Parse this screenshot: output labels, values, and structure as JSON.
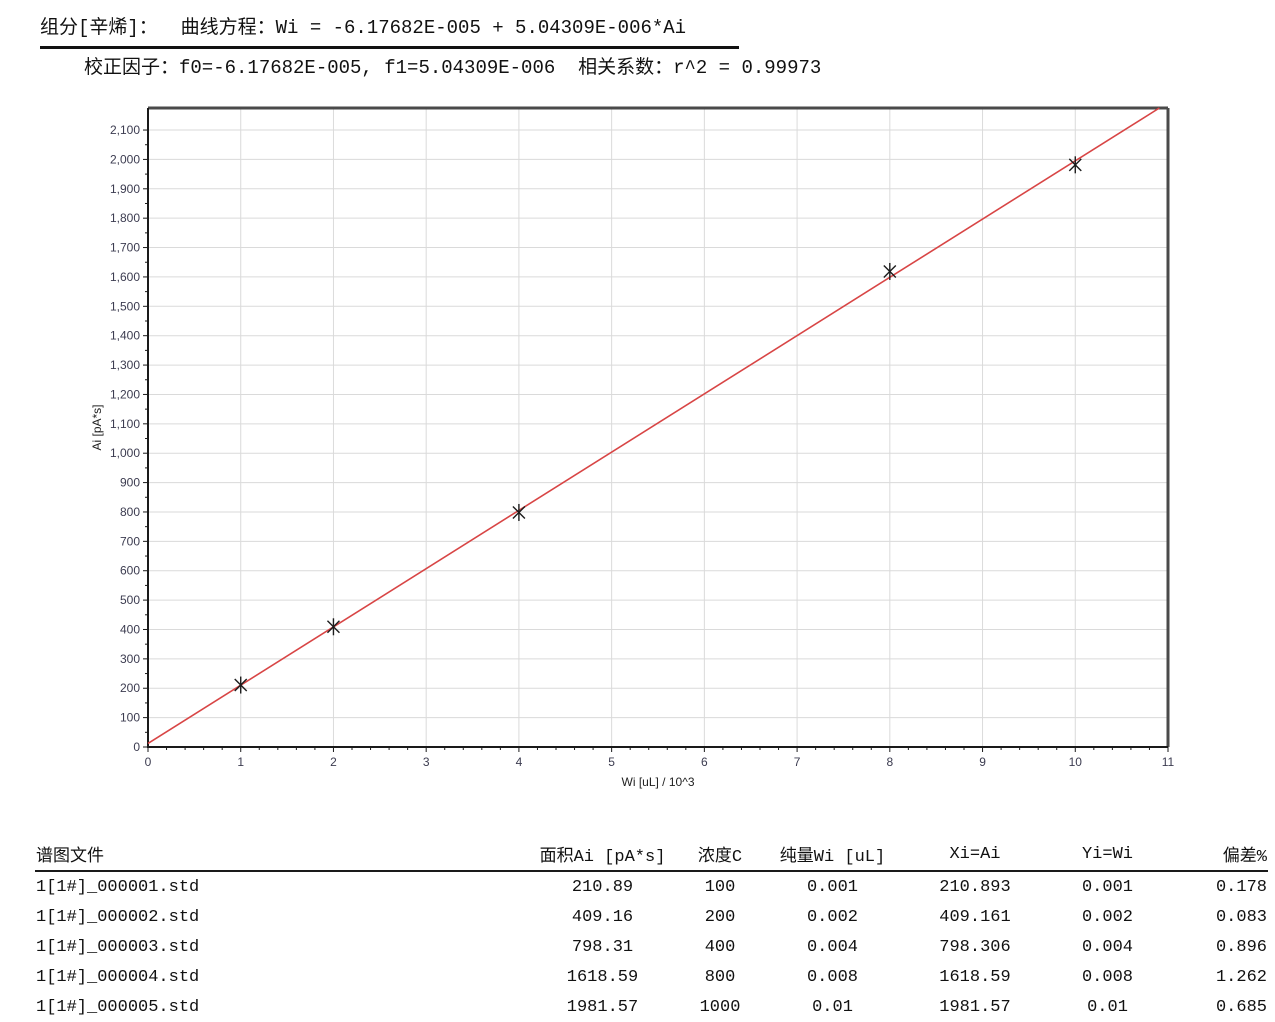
{
  "header": {
    "line1": "组分[辛烯]：  曲线方程：Wi = -6.17682E-005 + 5.04309E-006*Ai",
    "line2": "校正因子：f0=-6.17682E-005, f1=5.04309E-006  相关系数：r^2 = 0.99973"
  },
  "chart_data": {
    "type": "scatter",
    "title": "",
    "xlabel": "Wi [uL] / 10^3",
    "ylabel": "Ai [pA*s]",
    "xlim": [
      0,
      11
    ],
    "ylim": [
      0,
      2175
    ],
    "x_major_step": 1,
    "x_minor_step": 0.2,
    "y_major_step": 100,
    "y_minor_step": 50,
    "y_label_max": 2100,
    "grid": true,
    "legend": "none",
    "points": [
      {
        "x": 1,
        "y": 210.893
      },
      {
        "x": 2,
        "y": 409.161
      },
      {
        "x": 4,
        "y": 798.306
      },
      {
        "x": 8,
        "y": 1618.59
      },
      {
        "x": 10,
        "y": 1981.57
      }
    ],
    "fit_line": {
      "f0": -6.17682e-05,
      "f1": 5.04309e-06,
      "x_axis_scale": 1000
    },
    "colors": {
      "fit_line": "#d84545",
      "marker": "#1c1c1c",
      "grid": "#dadada",
      "border_outer": "#4a4a4a",
      "axis": "#1a1a1a",
      "tick_label": "#3c3c50",
      "axis_title": "#222222"
    }
  },
  "table": {
    "columns": [
      "谱图文件",
      "面积Ai [pA*s]",
      "浓度C",
      "纯量Wi [uL]",
      "Xi=Ai",
      "Yi=Wi",
      "偏差%"
    ],
    "col_aligns": [
      "left",
      "center",
      "center",
      "center",
      "center",
      "center",
      "right"
    ],
    "rows": [
      [
        "1[1#]_000001.std",
        "210.89",
        "100",
        "0.001",
        "210.893",
        "0.001",
        "0.178"
      ],
      [
        "1[1#]_000002.std",
        "409.16",
        "200",
        "0.002",
        "409.161",
        "0.002",
        "0.083"
      ],
      [
        "1[1#]_000003.std",
        "798.31",
        "400",
        "0.004",
        "798.306",
        "0.004",
        "0.896"
      ],
      [
        "1[1#]_000004.std",
        "1618.59",
        "800",
        "0.008",
        "1618.59",
        "0.008",
        "1.262"
      ],
      [
        "1[1#]_000005.std",
        "1981.57",
        "1000",
        "0.01",
        "1981.57",
        "0.01",
        "0.685"
      ]
    ]
  }
}
